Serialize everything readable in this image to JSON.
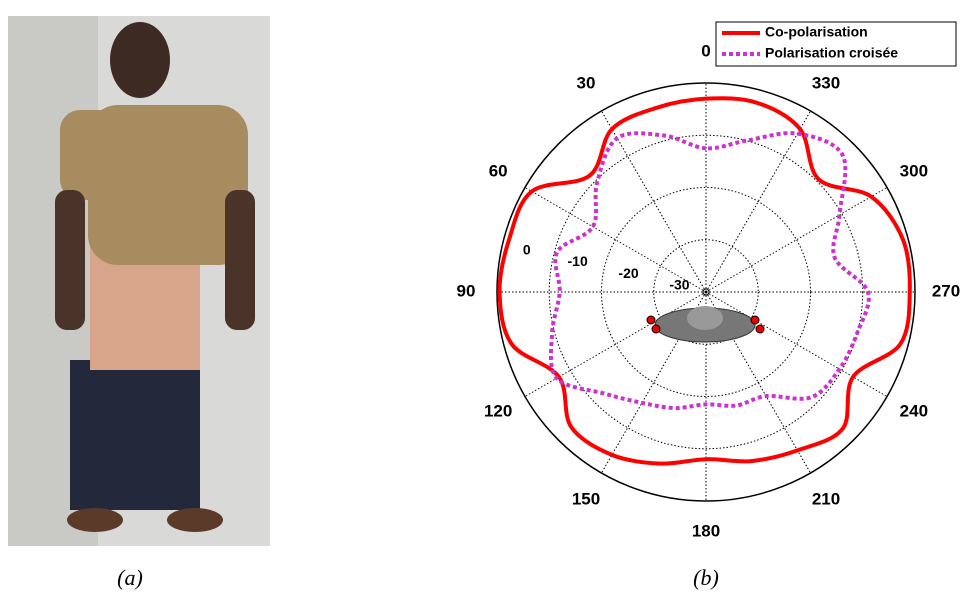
{
  "chart_data": {
    "type": "polar",
    "theta": [
      0,
      15,
      30,
      45,
      60,
      75,
      90,
      105,
      120,
      135,
      150,
      165,
      180,
      195,
      210,
      225,
      240,
      255,
      270,
      285,
      300,
      315,
      330,
      345
    ],
    "series": [
      {
        "name": "Co-polarisation",
        "color": "#ff0000",
        "style": "solid",
        "values": [
          -3,
          -3.5,
          -4,
          -8.5,
          -1.5,
          -1,
          -0.5,
          -1.5,
          -7.5,
          -3.5,
          -4,
          -6,
          -8,
          -6.5,
          -5,
          -3,
          -7.5,
          -1.5,
          -1,
          -1,
          -3.5,
          -9.5,
          -4,
          -2.5
        ]
      },
      {
        "name": "Polarisation croisée",
        "color": "#cc33cc",
        "style": "dotted",
        "values": [
          -12.5,
          -9,
          -6,
          -10.5,
          -15,
          -10.5,
          -12,
          -9.5,
          -7,
          -12.5,
          -15.5,
          -17,
          -18.5,
          -17.5,
          -17,
          -11.5,
          -10.5,
          -10,
          -9,
          -14.5,
          -10.5,
          -3,
          -5,
          -10
        ]
      }
    ],
    "rlim": [
      -40,
      0
    ],
    "rticks": [
      -30,
      -20,
      -10,
      0
    ],
    "thetaticks": [
      0,
      30,
      60,
      90,
      120,
      150,
      180,
      210,
      240,
      270,
      300,
      330
    ],
    "direction": "counterclockwise",
    "zero": "top",
    "grid": true,
    "legend": "upper right"
  },
  "captions": {
    "left": "(a)",
    "right": "(b)"
  }
}
